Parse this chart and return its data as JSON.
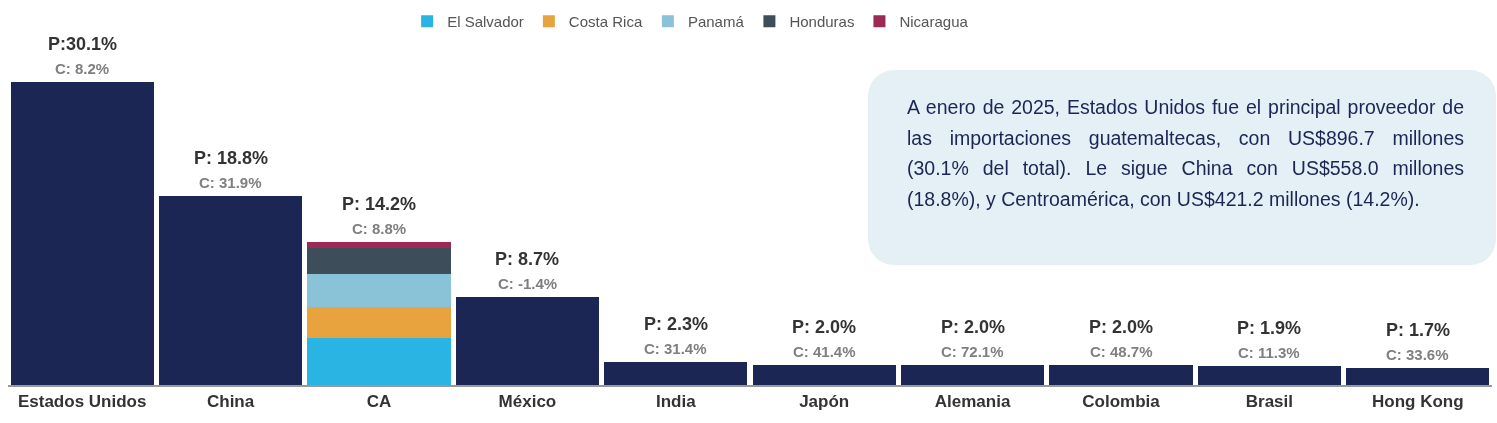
{
  "chart_data": {
    "type": "bar",
    "stacked": true,
    "legend": "top",
    "categories": [
      "Estados Unidos",
      "China",
      "CA",
      "México",
      "India",
      "Japón",
      "Alemania",
      "Colombia",
      "Brasil",
      "Hong Kong"
    ],
    "series": [
      {
        "color": "#1b2654",
        "values": [
          30.1,
          18.8,
          null,
          8.7,
          2.3,
          2.0,
          2.0,
          2.0,
          1.9,
          1.7
        ],
        "value_labels": [
          "P:30.1%",
          "P: 18.8%",
          null,
          "P: 8.7%",
          "P: 2.3%",
          "P: 2.0%",
          "P: 2.0%",
          "P: 2.0%",
          "P: 1.9%",
          "P: 1.7%"
        ]
      },
      {
        "name": "El Salvador",
        "color": "#29b4e3",
        "values": [
          null,
          null,
          4.7,
          null,
          null,
          null,
          null,
          null,
          null,
          null
        ]
      },
      {
        "name": "Costa Rica",
        "color": "#e8a33f",
        "values": [
          null,
          null,
          3.0,
          null,
          null,
          null,
          null,
          null,
          null,
          null
        ]
      },
      {
        "name": "Panamá",
        "color": "#8ac3d8",
        "values": [
          null,
          null,
          3.3,
          null,
          null,
          null,
          null,
          null,
          null,
          null
        ]
      },
      {
        "name": "Honduras",
        "color": "#3e4d5a",
        "values": [
          null,
          null,
          2.6,
          null,
          null,
          null,
          null,
          null,
          null,
          null
        ]
      },
      {
        "name": "Nicaragua",
        "color": "#9b2a55",
        "values": [
          null,
          null,
          0.6,
          null,
          null,
          null,
          null,
          null,
          null,
          null
        ]
      }
    ],
    "totals": [
      null,
      null,
      "P: 14.2%",
      null,
      null,
      null,
      null,
      null,
      null,
      null
    ],
    "annotations": [
      {
        "text": "C: 8.2%",
        "x": "Estados Unidos",
        "y": 30.1
      },
      {
        "text": "C: 31.9%",
        "x": "China",
        "y": 18.8
      },
      {
        "text": "C: 8.8%",
        "x": "CA",
        "y": 14.2
      },
      {
        "text": "C: -1.4%",
        "x": "México",
        "y": 8.7
      },
      {
        "text": "C: 31.4%",
        "x": "India",
        "y": 2.3
      },
      {
        "text": "C: 41.4%",
        "x": "Japón",
        "y": 2.0
      },
      {
        "text": "C: 72.1%",
        "x": "Alemania",
        "y": 2.0
      },
      {
        "text": "C: 48.7%",
        "x": "Colombia",
        "y": 2.0
      },
      {
        "text": "C: 11.3%",
        "x": "Brasil",
        "y": 1.9
      },
      {
        "text": "C: 33.6%",
        "x": "Hong Kong",
        "y": 1.7
      },
      "A enero de 2025, Estados Unidos fue el principal proveedor de las importaciones guatemaltecas, con US$896.7 millones (30.1% del total). Le sigue China con US$558.0 millones (18.8%), y Centroamérica, con US$421.2 millones (14.2%)."
    ]
  }
}
